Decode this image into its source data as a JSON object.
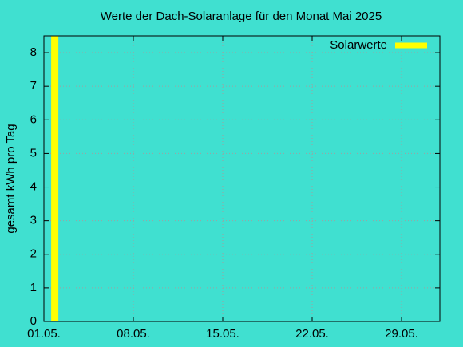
{
  "chart_data": {
    "type": "bar",
    "title": "Werte der Dach-Solaranlage für den Monat Mai 2025",
    "y_label": "gesamt kWh pro Tag",
    "x": [
      1.85
    ],
    "series": [
      {
        "name": "Solarwerte",
        "color": "#ffff00",
        "values": [
          8.5
        ]
      }
    ],
    "xlim": [
      1,
      32
    ],
    "xticks": [
      {
        "value": 1,
        "label": "01.05."
      },
      {
        "value": 8,
        "label": "08.05."
      },
      {
        "value": 15,
        "label": "15.05."
      },
      {
        "value": 22,
        "label": "22.05."
      },
      {
        "value": 29,
        "label": "29.05."
      }
    ],
    "ylim": [
      0,
      8.5
    ],
    "yticks": [
      0,
      1,
      2,
      3,
      4,
      5,
      6,
      7,
      8
    ],
    "grid": true,
    "legend": "top-right",
    "background": "#40e0d0"
  }
}
